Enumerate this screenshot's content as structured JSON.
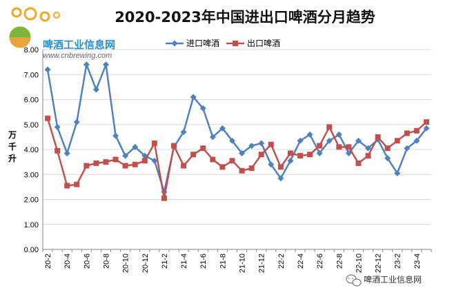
{
  "chart_data": {
    "type": "line",
    "title": "2020-2023年中国进出口啤酒分月趋势",
    "ylabel": "万千升",
    "ylim": [
      0,
      8
    ],
    "yticks": [
      "0.00",
      "1.00",
      "2.00",
      "3.00",
      "4.00",
      "5.00",
      "6.00",
      "7.00",
      "8.00"
    ],
    "x_tick_labels": [
      "20-2",
      "20-4",
      "20-6",
      "20-8",
      "20-10",
      "20-12",
      "21-2",
      "21-4",
      "21-6",
      "21-8",
      "21-10",
      "21-12",
      "22-2",
      "22-4",
      "22-6",
      "22-8",
      "22-10",
      "22-12",
      "23-2",
      "23-4"
    ],
    "x": [
      "20-2",
      "20-3",
      "20-4",
      "20-5",
      "20-6",
      "20-7",
      "20-8",
      "20-9",
      "20-10",
      "20-11",
      "20-12",
      "21-1",
      "21-2",
      "21-3",
      "21-4",
      "21-5",
      "21-6",
      "21-7",
      "21-8",
      "21-9",
      "21-10",
      "21-11",
      "21-12",
      "22-1",
      "22-2",
      "22-3",
      "22-4",
      "22-5",
      "22-6",
      "22-7",
      "22-8",
      "22-9",
      "22-10",
      "22-11",
      "22-12",
      "23-1",
      "23-2",
      "23-3",
      "23-4",
      "23-5"
    ],
    "legend_position": "top",
    "series": [
      {
        "name": "进口啤酒",
        "color": "#4f81bd",
        "marker": "diamond",
        "values": [
          7.2,
          4.9,
          3.85,
          5.1,
          7.4,
          6.4,
          7.4,
          4.55,
          3.75,
          4.1,
          3.75,
          3.55,
          2.3,
          4.1,
          4.7,
          6.1,
          5.65,
          4.5,
          4.85,
          4.35,
          3.85,
          4.15,
          4.25,
          3.4,
          2.85,
          3.55,
          4.35,
          4.6,
          3.85,
          4.35,
          4.6,
          3.85,
          4.35,
          4.05,
          4.4,
          3.65,
          3.05,
          4.05,
          4.35,
          4.85
        ]
      },
      {
        "name": "出口啤酒",
        "color": "#c0504d",
        "marker": "square",
        "values": [
          5.25,
          3.95,
          2.55,
          2.6,
          3.35,
          3.45,
          3.5,
          3.6,
          3.35,
          3.4,
          3.55,
          4.25,
          2.05,
          4.15,
          3.35,
          3.8,
          4.05,
          3.6,
          3.3,
          3.55,
          3.15,
          3.25,
          3.8,
          4.2,
          3.3,
          3.85,
          3.75,
          3.8,
          4.15,
          4.9,
          4.1,
          4.1,
          3.45,
          3.75,
          4.5,
          4.05,
          4.35,
          4.65,
          4.75,
          5.1
        ]
      }
    ]
  },
  "logo": {
    "name": "啤酒工业信息网",
    "url": "www.cnbrewing.com",
    "icon": "beer-logo-icon"
  },
  "watermark": {
    "icon": "wechat-icon",
    "text": "啤酒工业信息网"
  }
}
